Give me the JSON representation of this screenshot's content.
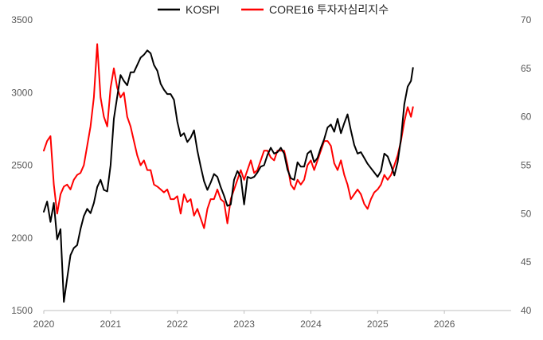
{
  "chart_data": {
    "type": "line",
    "title": "",
    "x_axis": {
      "range": [
        2020,
        2027
      ],
      "ticks": [
        "2020",
        "2021",
        "2022",
        "2023",
        "2024",
        "2025",
        "2026"
      ]
    },
    "y_axis_left": {
      "range": [
        1500,
        3500
      ],
      "ticks": [
        "1500",
        "2000",
        "2500",
        "3000",
        "3500"
      ]
    },
    "y_axis_right": {
      "range": [
        40,
        70
      ],
      "ticks": [
        "40",
        "45",
        "50",
        "55",
        "60",
        "65",
        "70"
      ]
    },
    "grid": false,
    "legend": {
      "position": "top-center",
      "entries": [
        "KOSPI",
        "CORE16 투자자심리지수"
      ]
    },
    "series": [
      {
        "name": "KOSPI",
        "axis": "left",
        "color": "#000000",
        "x": [
          2020.0,
          2020.05,
          2020.1,
          2020.15,
          2020.2,
          2020.25,
          2020.3,
          2020.35,
          2020.4,
          2020.45,
          2020.5,
          2020.55,
          2020.6,
          2020.65,
          2020.7,
          2020.75,
          2020.8,
          2020.85,
          2020.9,
          2020.95,
          2021.0,
          2021.05,
          2021.1,
          2021.15,
          2021.2,
          2021.25,
          2021.3,
          2021.35,
          2021.4,
          2021.45,
          2021.5,
          2021.55,
          2021.6,
          2021.65,
          2021.7,
          2021.75,
          2021.8,
          2021.85,
          2021.9,
          2021.95,
          2022.0,
          2022.05,
          2022.1,
          2022.15,
          2022.2,
          2022.25,
          2022.3,
          2022.35,
          2022.4,
          2022.45,
          2022.5,
          2022.55,
          2022.6,
          2022.65,
          2022.7,
          2022.75,
          2022.8,
          2022.85,
          2022.9,
          2022.95,
          2023.0,
          2023.05,
          2023.1,
          2023.15,
          2023.2,
          2023.25,
          2023.3,
          2023.35,
          2023.4,
          2023.45,
          2023.5,
          2023.55,
          2023.6,
          2023.65,
          2023.7,
          2023.75,
          2023.8,
          2023.85,
          2023.9,
          2023.95,
          2024.0,
          2024.05,
          2024.1,
          2024.15,
          2024.2,
          2024.25,
          2024.3,
          2024.35,
          2024.4,
          2024.45,
          2024.5,
          2024.55,
          2024.6,
          2024.65,
          2024.7,
          2024.75,
          2024.8,
          2024.85,
          2024.9,
          2024.95,
          2025.0,
          2025.05,
          2025.1,
          2025.15,
          2025.2,
          2025.25,
          2025.3,
          2025.35,
          2025.4,
          2025.45,
          2025.5,
          2025.53
        ],
        "values": [
          2180,
          2250,
          2110,
          2240,
          1990,
          2060,
          1560,
          1720,
          1880,
          1930,
          1950,
          2060,
          2150,
          2200,
          2170,
          2240,
          2350,
          2400,
          2330,
          2320,
          2500,
          2820,
          2970,
          3120,
          3080,
          3050,
          3140,
          3140,
          3190,
          3240,
          3260,
          3290,
          3270,
          3190,
          3150,
          3060,
          3020,
          2990,
          2990,
          2950,
          2800,
          2700,
          2720,
          2660,
          2690,
          2740,
          2600,
          2490,
          2390,
          2330,
          2380,
          2440,
          2420,
          2350,
          2290,
          2220,
          2230,
          2400,
          2460,
          2420,
          2230,
          2420,
          2410,
          2420,
          2450,
          2490,
          2500,
          2570,
          2620,
          2580,
          2590,
          2620,
          2580,
          2470,
          2410,
          2400,
          2520,
          2490,
          2490,
          2580,
          2600,
          2520,
          2550,
          2620,
          2680,
          2760,
          2780,
          2730,
          2820,
          2720,
          2790,
          2850,
          2740,
          2640,
          2580,
          2590,
          2550,
          2510,
          2480,
          2450,
          2420,
          2460,
          2580,
          2560,
          2500,
          2430,
          2520,
          2680,
          2920,
          3040,
          3080,
          3170
        ]
      },
      {
        "name": "CORE16 투자자심리지수",
        "axis": "right",
        "color": "#ff0000",
        "x": [
          2020.0,
          2020.05,
          2020.1,
          2020.15,
          2020.2,
          2020.25,
          2020.3,
          2020.35,
          2020.4,
          2020.45,
          2020.5,
          2020.55,
          2020.6,
          2020.65,
          2020.7,
          2020.75,
          2020.8,
          2020.85,
          2020.9,
          2020.95,
          2021.0,
          2021.05,
          2021.1,
          2021.15,
          2021.2,
          2021.25,
          2021.3,
          2021.35,
          2021.4,
          2021.45,
          2021.5,
          2021.55,
          2021.6,
          2021.65,
          2021.7,
          2021.75,
          2021.8,
          2021.85,
          2021.9,
          2021.95,
          2022.0,
          2022.05,
          2022.1,
          2022.15,
          2022.2,
          2022.25,
          2022.3,
          2022.35,
          2022.4,
          2022.45,
          2022.5,
          2022.55,
          2022.6,
          2022.65,
          2022.7,
          2022.75,
          2022.8,
          2022.85,
          2022.9,
          2022.95,
          2023.0,
          2023.05,
          2023.1,
          2023.15,
          2023.2,
          2023.25,
          2023.3,
          2023.35,
          2023.4,
          2023.45,
          2023.5,
          2023.55,
          2023.6,
          2023.65,
          2023.7,
          2023.75,
          2023.8,
          2023.85,
          2023.9,
          2023.95,
          2024.0,
          2024.05,
          2024.1,
          2024.15,
          2024.2,
          2024.25,
          2024.3,
          2024.35,
          2024.4,
          2024.45,
          2024.5,
          2024.55,
          2024.6,
          2024.65,
          2024.7,
          2024.75,
          2024.8,
          2024.85,
          2024.9,
          2024.95,
          2025.0,
          2025.05,
          2025.1,
          2025.15,
          2025.2,
          2025.25,
          2025.3,
          2025.35,
          2025.4,
          2025.45,
          2025.5,
          2025.53
        ],
        "values": [
          56.5,
          57.5,
          58,
          53,
          50,
          52,
          52.8,
          53,
          52.5,
          53.5,
          54,
          54.2,
          55,
          57,
          59,
          62,
          67.5,
          62,
          60,
          59,
          63,
          65,
          63,
          62,
          62.5,
          60,
          59,
          57.5,
          56,
          55,
          55.5,
          54.5,
          54.5,
          53,
          52.8,
          52.5,
          52.2,
          52.5,
          51.5,
          51.5,
          51.8,
          50,
          52,
          51.2,
          51.5,
          49.8,
          50.5,
          49.5,
          48.5,
          50.5,
          51.5,
          51.5,
          52.5,
          51.5,
          51.2,
          49,
          51.5,
          52.5,
          53.5,
          54.5,
          53.5,
          54.5,
          55.5,
          54.2,
          54.5,
          55.5,
          56.5,
          56.5,
          55.8,
          55.5,
          56.5,
          56.5,
          56.5,
          55,
          53,
          52.5,
          53.5,
          53,
          53.5,
          55,
          55.5,
          54.5,
          55.5,
          56.5,
          57.5,
          57.5,
          57,
          55.2,
          54.5,
          55.5,
          54,
          53,
          51.5,
          52,
          52.5,
          52,
          51,
          50.5,
          51.5,
          52.2,
          52.5,
          53,
          54,
          53.5,
          54,
          55,
          56,
          57.5,
          59.5,
          61,
          60,
          61
        ]
      }
    ]
  }
}
